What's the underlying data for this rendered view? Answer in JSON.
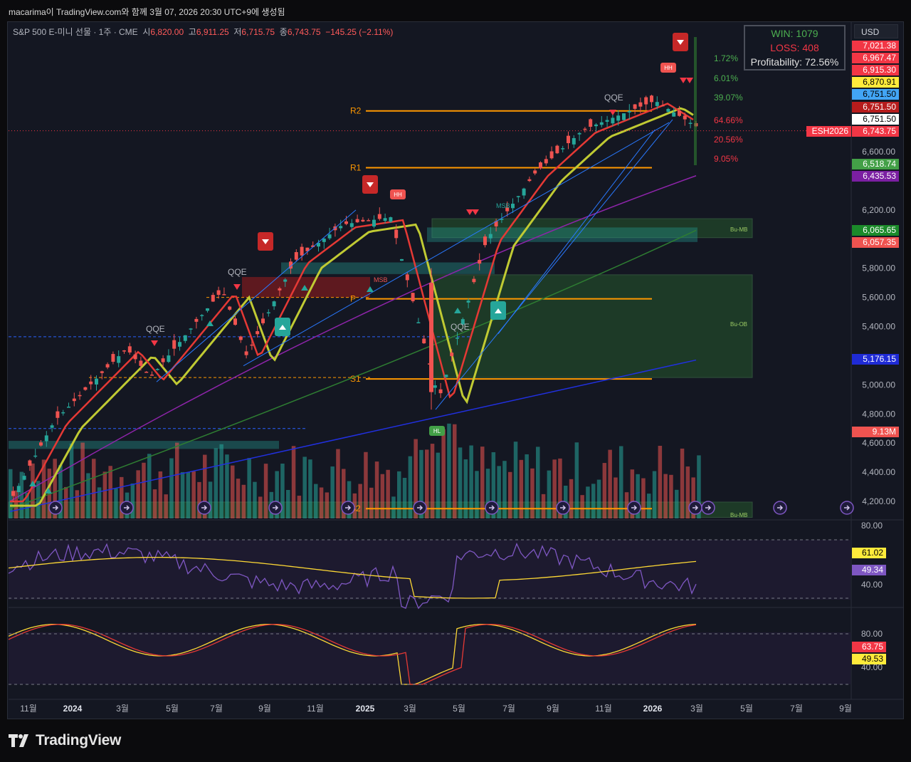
{
  "header": {
    "snapshot_title": "macarima이 TradingView.com와 함께 3월 07, 2026 20:30 UTC+9에 생성됨"
  },
  "symbol_legend": {
    "name": "S&P 500 E-미니 선물 · 1주 · CME",
    "open_label": "시",
    "open_value": "6,820.00",
    "high_label": "고",
    "high_value": "6,911.25",
    "low_label": "저",
    "low_value": "6,715.75",
    "close_label": "종",
    "close_value": "6,743.75",
    "change_value": "−145.25 (−2.11%)"
  },
  "currency_button": "USD",
  "stats": {
    "win": "WIN: 1079",
    "loss": "LOSS: 408",
    "profitability": "Profitability: 72.56%",
    "win_color": "#4caf50",
    "loss_color": "#f23645"
  },
  "percent_labels": [
    {
      "text": "1.72%",
      "color": "#4caf50"
    },
    {
      "text": "6.01%",
      "color": "#4caf50"
    },
    {
      "text": "39.07%",
      "color": "#4caf50"
    },
    {
      "text": "64.66%",
      "color": "#f23645"
    },
    {
      "text": "20.56%",
      "color": "#f23645"
    },
    {
      "text": "9.05%",
      "color": "#f23645"
    }
  ],
  "pivot_labels": [
    "R2",
    "R1",
    "P",
    "S1",
    "S2"
  ],
  "chart_labels": {
    "qqe": "QQE",
    "msb": "MSB",
    "hh": "HH",
    "hl": "HL",
    "bu_mb": "Bu-MB",
    "bu_ob": "Bu-OB"
  },
  "price_badges": [
    {
      "text": "7,021.38",
      "bg": "#f23645",
      "fg": "#ffffff"
    },
    {
      "text": "6,967.47",
      "bg": "#f23645",
      "fg": "#ffffff"
    },
    {
      "text": "6,915.30",
      "bg": "#f23645",
      "fg": "#ffffff"
    },
    {
      "text": "6,870.91",
      "bg": "#ffeb3b",
      "fg": "#000000"
    },
    {
      "text": "6,751.50",
      "bg": "#42a5f5",
      "fg": "#000000"
    },
    {
      "text": "6,751.50",
      "bg": "#b71c1c",
      "fg": "#ffffff"
    },
    {
      "text": "6,751.50",
      "bg": "#ffffff",
      "fg": "#000000"
    },
    {
      "text": "6,743.75",
      "bg": "#f23645",
      "fg": "#ffffff"
    },
    {
      "text": "6,518.74",
      "bg": "#43a047",
      "fg": "#ffffff"
    },
    {
      "text": "6,435.53",
      "bg": "#7b1fa2",
      "fg": "#ffffff"
    },
    {
      "text": "6,065.65",
      "bg": "#1b8a2a",
      "fg": "#ffffff"
    },
    {
      "text": "6,057.35",
      "bg": "#ef5350",
      "fg": "#ffffff"
    },
    {
      "text": "5,176.15",
      "bg": "#1f2bd6",
      "fg": "#ffffff"
    },
    {
      "text": "9.13M",
      "bg": "#ef5350",
      "fg": "#ffffff"
    }
  ],
  "symbol_badge": {
    "text": "ESH2026",
    "bg": "#f23645"
  },
  "price_axis_ticks": [
    "6,600.00",
    "6,200.00",
    "5,800.00",
    "5,600.00",
    "5,400.00",
    "5,000.00",
    "4,800.00",
    "4,600.00",
    "4,400.00",
    "4,200.00"
  ],
  "rsi_panel": {
    "ticks": [
      "80.00",
      "40.00"
    ],
    "badges": [
      {
        "text": "61.02",
        "bg": "#ffeb3b",
        "fg": "#000000"
      },
      {
        "text": "49.34",
        "bg": "#7e57c2",
        "fg": "#ffffff"
      }
    ]
  },
  "stoch_panel": {
    "ticks": [
      "80.00",
      "40.00"
    ],
    "badges": [
      {
        "text": "63.75",
        "bg": "#f23645",
        "fg": "#ffffff"
      },
      {
        "text": "49.53",
        "bg": "#ffeb3b",
        "fg": "#000000"
      }
    ]
  },
  "time_axis": [
    "11월",
    "2024",
    "3월",
    "5월",
    "7월",
    "9월",
    "11월",
    "2025",
    "3월",
    "5월",
    "7월",
    "9월",
    "11월",
    "2026",
    "3월",
    "5월",
    "7월",
    "9월"
  ],
  "footer": {
    "logo_text": "TradingView"
  },
  "chart_data": {
    "type": "candlestick",
    "title": "S&P 500 E-미니 선물 · 1주 · CME",
    "x_range": [
      "2023-10",
      "2026-09"
    ],
    "ylim": [
      4100,
      7050
    ],
    "approx_close_path": [
      {
        "t": "2023-10",
        "close": 4150
      },
      {
        "t": "2023-12",
        "close": 4750
      },
      {
        "t": "2024-03",
        "close": 5250
      },
      {
        "t": "2024-04",
        "close": 5050
      },
      {
        "t": "2024-07",
        "close": 5650
      },
      {
        "t": "2024-08",
        "close": 5200
      },
      {
        "t": "2024-10",
        "close": 5850
      },
      {
        "t": "2024-12",
        "close": 6100
      },
      {
        "t": "2025-02",
        "close": 6150
      },
      {
        "t": "2025-04",
        "close": 4900
      },
      {
        "t": "2025-06",
        "close": 6000
      },
      {
        "t": "2025-08",
        "close": 6450
      },
      {
        "t": "2025-10",
        "close": 6750
      },
      {
        "t": "2026-01",
        "close": 6950
      },
      {
        "t": "2026-03",
        "close": 6743.75
      }
    ],
    "pivots": {
      "R2": 6880,
      "R1": 6490,
      "P": 5590,
      "S1": 5040,
      "S2": 4150
    },
    "volume_last": "9.13M",
    "rsi": {
      "rsi": 49.34,
      "ma": 61.02,
      "bands": [
        80,
        40
      ]
    },
    "stochastic": {
      "k": 49.53,
      "d": 63.75,
      "bands": [
        80,
        40
      ]
    }
  }
}
